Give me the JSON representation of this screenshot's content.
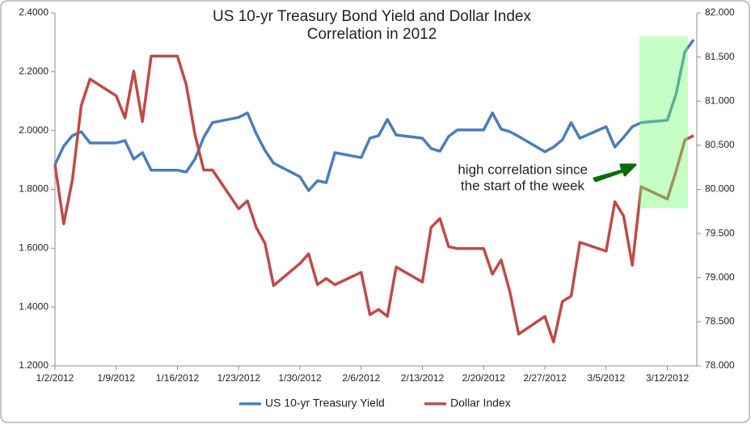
{
  "chart_data": {
    "type": "line",
    "title": [
      "US 10-yr Treasury Bond Yield and Dollar Index",
      "Correlation in 2012"
    ],
    "annotation": [
      "high correlation since",
      "the start of the week"
    ],
    "x": [
      "1/2/2012",
      "1/3/2012",
      "1/4/2012",
      "1/5/2012",
      "1/6/2012",
      "1/9/2012",
      "1/10/2012",
      "1/11/2012",
      "1/12/2012",
      "1/13/2012",
      "1/16/2012",
      "1/17/2012",
      "1/18/2012",
      "1/19/2012",
      "1/20/2012",
      "1/23/2012",
      "1/24/2012",
      "1/25/2012",
      "1/26/2012",
      "1/27/2012",
      "1/30/2012",
      "1/31/2012",
      "2/1/2012",
      "2/2/2012",
      "2/3/2012",
      "2/6/2012",
      "2/7/2012",
      "2/8/2012",
      "2/9/2012",
      "2/10/2012",
      "2/13/2012",
      "2/14/2012",
      "2/15/2012",
      "2/16/2012",
      "2/17/2012",
      "2/20/2012",
      "2/21/2012",
      "2/22/2012",
      "2/23/2012",
      "2/24/2012",
      "2/27/2012",
      "2/28/2012",
      "2/29/2012",
      "3/1/2012",
      "3/2/2012",
      "3/5/2012",
      "3/6/2012",
      "3/7/2012",
      "3/8/2012",
      "3/9/2012",
      "3/12/2012",
      "3/13/2012",
      "3/14/2012",
      "3/15/2012"
    ],
    "series": [
      {
        "name": "US 10-yr Treasury Yield",
        "color": "#4a7ebb",
        "axis": "y",
        "values": [
          1.884,
          1.947,
          1.983,
          1.996,
          1.958,
          1.958,
          1.966,
          1.903,
          1.925,
          1.865,
          1.865,
          1.859,
          1.903,
          1.977,
          2.027,
          2.045,
          2.06,
          1.99,
          1.933,
          1.889,
          1.843,
          1.796,
          1.829,
          1.823,
          1.925,
          1.908,
          1.974,
          1.983,
          2.038,
          1.985,
          1.974,
          1.939,
          1.93,
          1.98,
          2.002,
          2.002,
          2.06,
          2.005,
          1.996,
          1.98,
          1.928,
          1.944,
          1.969,
          2.027,
          1.974,
          2.013,
          1.944,
          1.977,
          2.013,
          2.027,
          2.035,
          2.125,
          2.268,
          2.309
        ]
      },
      {
        "name": "Dollar Index",
        "color": "#be4b48",
        "axis": "y2",
        "values": [
          80.28,
          79.61,
          80.11,
          80.95,
          81.25,
          81.06,
          80.81,
          81.34,
          80.77,
          81.51,
          81.51,
          81.19,
          80.62,
          80.22,
          80.22,
          79.78,
          79.87,
          79.57,
          79.39,
          78.91,
          79.16,
          79.27,
          78.92,
          78.99,
          78.92,
          79.06,
          78.58,
          78.64,
          78.56,
          79.12,
          78.95,
          79.57,
          79.67,
          79.35,
          79.33,
          79.33,
          79.04,
          79.2,
          78.84,
          78.36,
          78.56,
          78.27,
          78.73,
          78.79,
          79.4,
          79.3,
          79.86,
          79.7,
          79.14,
          80.03,
          79.89,
          80.21,
          80.56,
          80.61
        ]
      }
    ],
    "xlim": [
      "1/2/2012",
      "3/15/2012"
    ],
    "xticks": [
      "1/2/2012",
      "1/9/2012",
      "1/16/2012",
      "1/23/2012",
      "1/30/2012",
      "2/6/2012",
      "2/13/2012",
      "2/20/2012",
      "2/27/2012",
      "3/5/2012",
      "3/12/2012"
    ],
    "ylim": [
      1.2,
      2.4
    ],
    "yticks": [
      {
        "value": 1.2,
        "label": "1.2000"
      },
      {
        "value": 1.4,
        "label": "1.4000"
      },
      {
        "value": 1.6,
        "label": "1.6000"
      },
      {
        "value": 1.8,
        "label": "1.8000"
      },
      {
        "value": 2.0,
        "label": "2.0000"
      },
      {
        "value": 2.2,
        "label": "2.2000"
      },
      {
        "value": 2.4,
        "label": "2.4000"
      }
    ],
    "y2lim": [
      78,
      82
    ],
    "y2ticks": [
      {
        "value": 78,
        "label": "78.000"
      },
      {
        "value": 78.5,
        "label": "78.500"
      },
      {
        "value": 79,
        "label": "79.000"
      },
      {
        "value": 79.5,
        "label": "79.500"
      },
      {
        "value": 80,
        "label": "80.000"
      },
      {
        "value": 80.5,
        "label": "80.500"
      },
      {
        "value": 81,
        "label": "81.000"
      },
      {
        "value": 81.5,
        "label": "81.500"
      },
      {
        "value": 82,
        "label": "82.000"
      }
    ],
    "grid": false,
    "legend": "bottom"
  }
}
